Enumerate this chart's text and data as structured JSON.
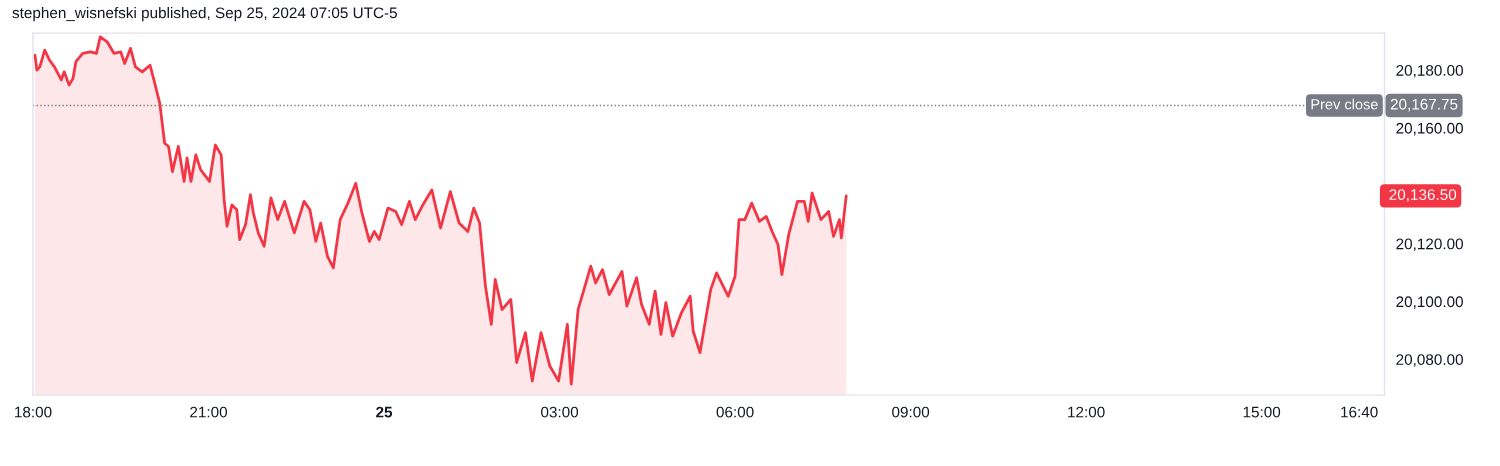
{
  "chart_data": {
    "type": "area",
    "title": "stephen_wisnefski published, Sep 25, 2024 07:05 UTC-5",
    "series": [
      {
        "color": "#f23645",
        "x": [
          "2024-09-24T18:02",
          "2024-09-24T18:04",
          "2024-09-24T18:07",
          "2024-09-24T18:12",
          "2024-09-24T18:17",
          "2024-09-24T18:22",
          "2024-09-24T18:29",
          "2024-09-24T18:32",
          "2024-09-24T18:37",
          "2024-09-24T18:41",
          "2024-09-24T18:44",
          "2024-09-24T18:51",
          "2024-09-24T18:59",
          "2024-09-24T19:05",
          "2024-09-24T19:09",
          "2024-09-24T19:16",
          "2024-09-24T19:23",
          "2024-09-24T19:30",
          "2024-09-24T19:34",
          "2024-09-24T19:40",
          "2024-09-24T19:45",
          "2024-09-24T19:52",
          "2024-09-24T20:00",
          "2024-09-24T20:04",
          "2024-09-24T20:10",
          "2024-09-24T20:15",
          "2024-09-24T20:19",
          "2024-09-24T20:23",
          "2024-09-24T20:29",
          "2024-09-24T20:35",
          "2024-09-24T20:38",
          "2024-09-24T20:42",
          "2024-09-24T20:47",
          "2024-09-24T20:52",
          "2024-09-24T21:01",
          "2024-09-24T21:07",
          "2024-09-24T21:13",
          "2024-09-24T21:16",
          "2024-09-24T21:19",
          "2024-09-24T21:24",
          "2024-09-24T21:29",
          "2024-09-24T21:32",
          "2024-09-24T21:38",
          "2024-09-24T21:43",
          "2024-09-24T21:46",
          "2024-09-24T21:51",
          "2024-09-24T21:57",
          "2024-09-24T22:04",
          "2024-09-24T22:11",
          "2024-09-24T22:18",
          "2024-09-24T22:28",
          "2024-09-24T22:38",
          "2024-09-24T22:44",
          "2024-09-24T22:50",
          "2024-09-24T22:55",
          "2024-09-24T23:02",
          "2024-09-24T23:08",
          "2024-09-24T23:15",
          "2024-09-24T23:23",
          "2024-09-24T23:31",
          "2024-09-24T23:37",
          "2024-09-24T23:45",
          "2024-09-24T23:50",
          "2024-09-24T23:55",
          "2024-09-25T00:04",
          "2024-09-25T00:12",
          "2024-09-25T00:18",
          "2024-09-25T00:26",
          "2024-09-25T00:32",
          "2024-09-25T00:39",
          "2024-09-25T00:49",
          "2024-09-25T00:58",
          "2024-09-25T01:08",
          "2024-09-25T01:17",
          "2024-09-25T01:26",
          "2024-09-25T01:32",
          "2024-09-25T01:38",
          "2024-09-25T01:44",
          "2024-09-25T01:50",
          "2024-09-25T01:54",
          "2024-09-25T02:01",
          "2024-09-25T02:10",
          "2024-09-25T02:16",
          "2024-09-25T02:25",
          "2024-09-25T02:32",
          "2024-09-25T02:41",
          "2024-09-25T02:50",
          "2024-09-25T02:59",
          "2024-09-25T03:08",
          "2024-09-25T03:12",
          "2024-09-25T03:19",
          "2024-09-25T03:25",
          "2024-09-25T03:32",
          "2024-09-25T03:37",
          "2024-09-25T03:44",
          "2024-09-25T03:51",
          "2024-09-25T04:04",
          "2024-09-25T04:09",
          "2024-09-25T04:19",
          "2024-09-25T04:24",
          "2024-09-25T04:32",
          "2024-09-25T04:38",
          "2024-09-25T04:44",
          "2024-09-25T04:49",
          "2024-09-25T04:56",
          "2024-09-25T05:05",
          "2024-09-25T05:14",
          "2024-09-25T05:17",
          "2024-09-25T05:24",
          "2024-09-25T05:35",
          "2024-09-25T05:41",
          "2024-09-25T05:53",
          "2024-09-25T06:00",
          "2024-09-25T06:04",
          "2024-09-25T06:10",
          "2024-09-25T06:17",
          "2024-09-25T06:25",
          "2024-09-25T06:32",
          "2024-09-25T06:38",
          "2024-09-25T06:44",
          "2024-09-25T06:48",
          "2024-09-25T06:55",
          "2024-09-25T07:04",
          "2024-09-25T07:11",
          "2024-09-25T07:15",
          "2024-09-25T07:19",
          "2024-09-25T07:28",
          "2024-09-25T07:36",
          "2024-09-25T07:41",
          "2024-09-25T07:47",
          "2024-09-25T07:49",
          "2024-09-25T07:54"
        ],
        "values": [
          20185.2,
          20180.0,
          20181.1,
          20186.9,
          20183.4,
          20181.1,
          20176.6,
          20179.4,
          20174.8,
          20177.1,
          20182.9,
          20185.8,
          20186.3,
          20185.8,
          20191.5,
          20189.8,
          20185.8,
          20186.3,
          20182.3,
          20187.5,
          20181.1,
          20179.4,
          20181.7,
          20176.6,
          20168.5,
          20154.7,
          20153.6,
          20144.9,
          20153.6,
          20141.5,
          20149.6,
          20141.5,
          20150.7,
          20145.5,
          20141.5,
          20154.1,
          20150.7,
          20135.2,
          20126.0,
          20133.4,
          20131.7,
          20121.4,
          20126.6,
          20136.9,
          20130.6,
          20123.7,
          20119.1,
          20135.8,
          20128.3,
          20134.6,
          20123.7,
          20134.6,
          20131.7,
          20120.8,
          20127.1,
          20115.6,
          20111.6,
          20128.3,
          20134.0,
          20140.9,
          20131.1,
          20120.8,
          20124.2,
          20121.4,
          20132.3,
          20131.1,
          20126.6,
          20134.6,
          20128.3,
          20132.9,
          20138.6,
          20125.4,
          20138.0,
          20127.1,
          20124.2,
          20132.3,
          20127.1,
          20105.3,
          20092.1,
          20107.6,
          20097.2,
          20100.7,
          20078.9,
          20089.2,
          20072.5,
          20089.2,
          20077.7,
          20072.5,
          20092.1,
          20071.4,
          20097.2,
          20104.1,
          20112.2,
          20106.4,
          20111.0,
          20102.4,
          20110.4,
          20098.4,
          20108.2,
          20099.0,
          20092.1,
          20103.6,
          20088.6,
          20099.6,
          20088.0,
          20096.1,
          20101.8,
          20089.8,
          20082.3,
          20104.1,
          20109.9,
          20101.8,
          20108.7,
          20128.3,
          20128.3,
          20134.0,
          20127.7,
          20129.4,
          20124.2,
          20119.7,
          20109.3,
          20123.1,
          20134.6,
          20134.6,
          20127.7,
          20137.5,
          20128.3,
          20131.1,
          20122.5,
          20128.3,
          20122.0,
          20136.5
        ]
      }
    ],
    "xlim": [
      "2024-09-24T18:00",
      "2024-09-25T17:06"
    ],
    "xticks": [
      {
        "value": "2024-09-24T18:00",
        "label": "18:00"
      },
      {
        "value": "2024-09-24T21:00",
        "label": "21:00"
      },
      {
        "value": "2024-09-25T00:00",
        "label": "25"
      },
      {
        "value": "2024-09-25T03:00",
        "label": "03:00"
      },
      {
        "value": "2024-09-25T06:00",
        "label": "06:00"
      },
      {
        "value": "2024-09-25T09:00",
        "label": "09:00"
      },
      {
        "value": "2024-09-25T12:00",
        "label": "12:00"
      },
      {
        "value": "2024-09-25T15:00",
        "label": "15:00"
      },
      {
        "value": "2024-09-25T16:40",
        "label": "16:40"
      }
    ],
    "ylim": [
      20067.6,
      20192.8
    ],
    "yticks": [
      {
        "value": 20080,
        "label": "20,080.00"
      },
      {
        "value": 20100,
        "label": "20,100.00"
      },
      {
        "value": 20120,
        "label": "20,120.00"
      },
      {
        "value": 20160,
        "label": "20,160.00"
      },
      {
        "value": 20180,
        "label": "20,180.00"
      }
    ],
    "ref_lines": [
      {
        "axis": "y",
        "value": 20167.75,
        "label": "Prev close",
        "color": "#787b86",
        "line_style": "dotted"
      }
    ],
    "annotations": [
      {
        "text": "20,167.75",
        "x": "2024-09-25T17:06",
        "y": 20167.75
      },
      "20,136.50"
    ],
    "grid": false,
    "legend": false,
    "line_style": "solid",
    "marker": "none"
  }
}
